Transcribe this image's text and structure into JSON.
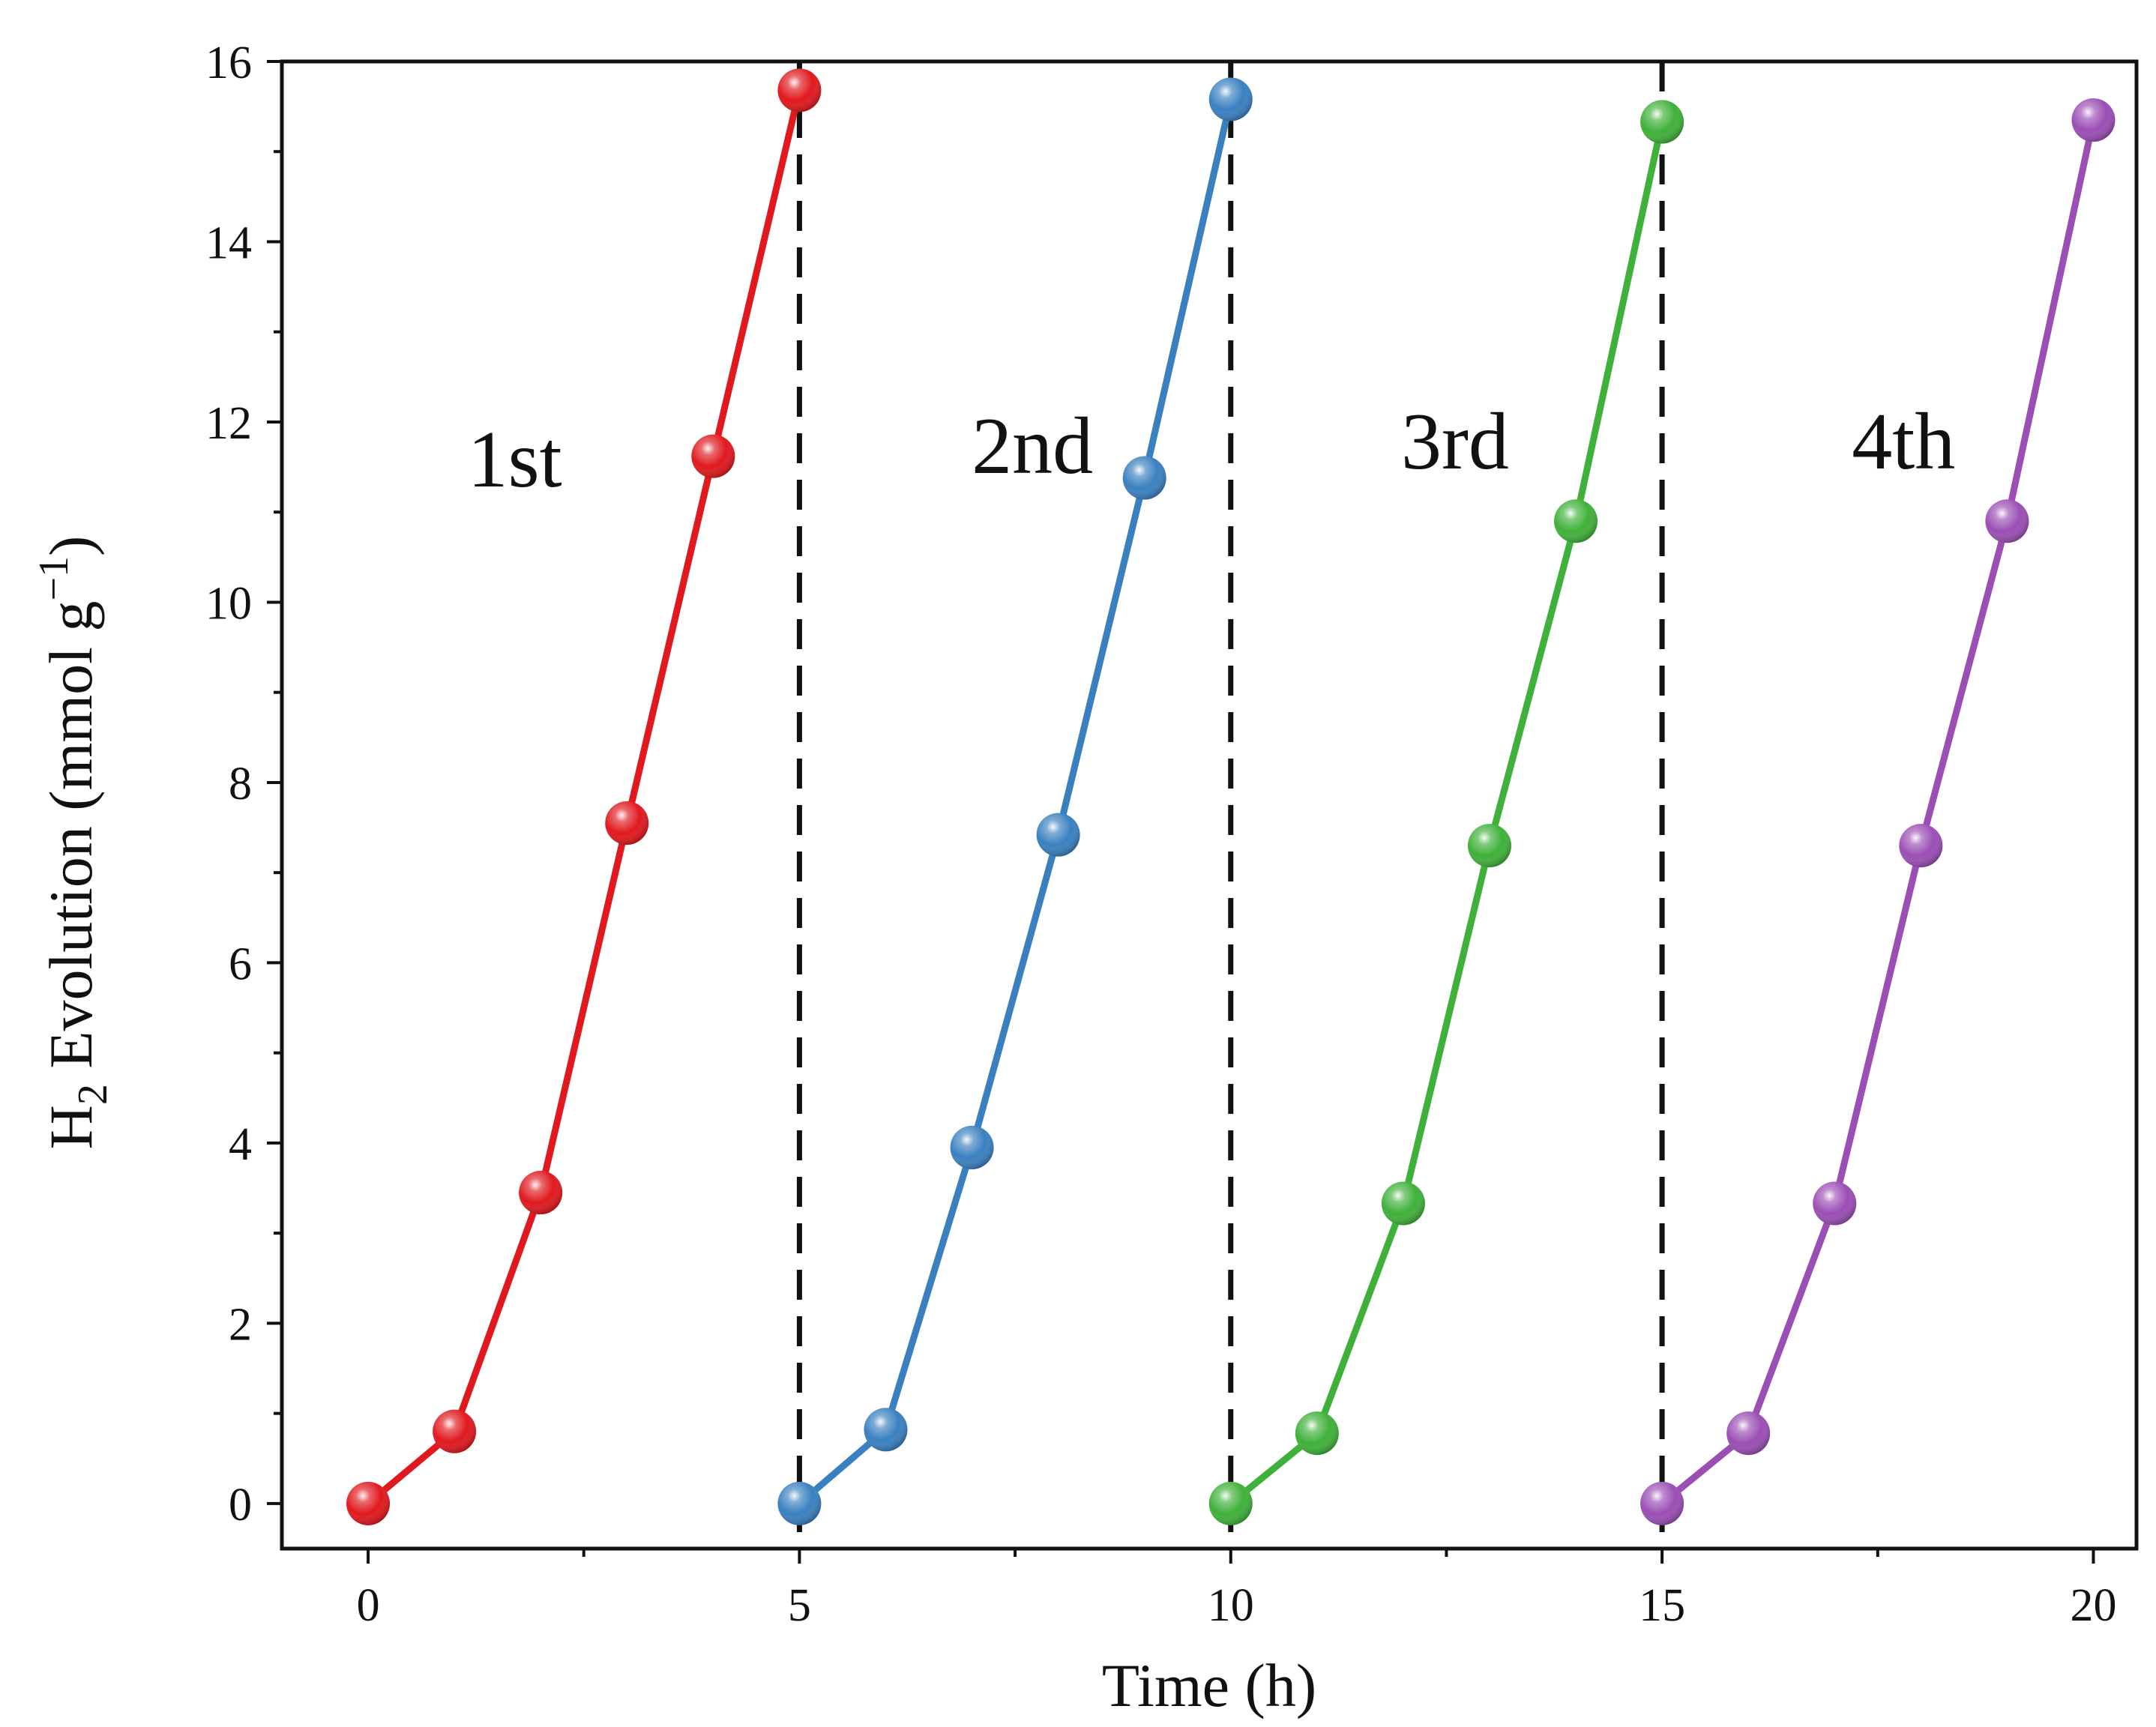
{
  "chart_data": {
    "type": "line",
    "title": "",
    "xlabel": "Time (h)",
    "ylabel_main": "H",
    "ylabel_sub": "2",
    "ylabel_rest": " Evolution (mmol g",
    "ylabel_sup": "−1",
    "ylabel_close": ")",
    "xlim": [
      -1,
      20.5
    ],
    "ylim": [
      -0.5,
      16
    ],
    "xticks": [
      0,
      5,
      10,
      15,
      20
    ],
    "yticks": [
      0,
      2,
      4,
      6,
      8,
      10,
      12,
      14,
      16
    ],
    "xtick_labels": [
      "0",
      "5",
      "10",
      "15",
      "20"
    ],
    "ytick_labels": [
      "0",
      "2",
      "4",
      "6",
      "8",
      "10",
      "12",
      "14",
      "16"
    ],
    "grid": false,
    "dashed_dividers_x": [
      5,
      10,
      15
    ],
    "series": [
      {
        "name": "1st",
        "color": "#e0191e",
        "x": [
          0,
          1,
          2,
          3,
          4,
          5
        ],
        "values": [
          0,
          0.8,
          3.45,
          7.55,
          11.62,
          15.68
        ]
      },
      {
        "name": "2nd",
        "color": "#3a80c0",
        "x": [
          5,
          6,
          7,
          8,
          9,
          10
        ],
        "values": [
          0,
          0.82,
          3.95,
          7.42,
          11.38,
          15.58
        ]
      },
      {
        "name": "3rd",
        "color": "#3fb13a",
        "x": [
          10,
          11,
          12,
          13,
          14,
          15
        ],
        "values": [
          0,
          0.78,
          3.33,
          7.3,
          10.9,
          15.33
        ]
      },
      {
        "name": "4th",
        "color": "#9b4fb5",
        "x": [
          15,
          16,
          17,
          18,
          19,
          20
        ],
        "values": [
          0,
          0.78,
          3.33,
          7.3,
          10.9,
          15.35
        ]
      }
    ],
    "annotations": [
      {
        "text": "1st",
        "x": 1.7,
        "y": 11.6
      },
      {
        "text": "2nd",
        "x": 7.7,
        "y": 11.75
      },
      {
        "text": "3rd",
        "x": 12.6,
        "y": 11.8
      },
      {
        "text": "4th",
        "x": 17.8,
        "y": 11.8
      }
    ]
  }
}
